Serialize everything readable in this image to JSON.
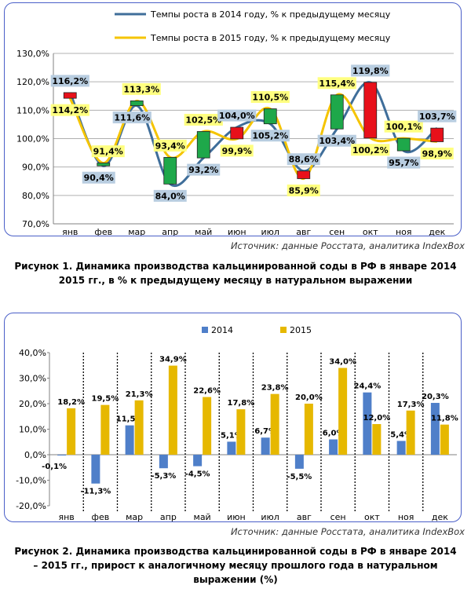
{
  "chart1": {
    "legend": [
      "Темпы роста в 2014 году, % к предыдущему месяцу",
      "Темпы роста в 2015 году, % к предыдущему месяцу"
    ],
    "source": "Источник: данные Росстата, аналитика IndexBox",
    "caption_line1": "Рисунок 1. Динамика производства кальцинированной  соды в РФ в январе 2014",
    "caption_line2": "2015 гг., в % к предыдущему  месяцу в натуральном  выражении"
  },
  "chart2": {
    "source": "Источник: данные Росстата, аналитика IndexBox",
    "caption_line1": "Рисунок 2. Динамика производства кальцинированной  соды в РФ в январе 2014",
    "caption_line2": "– 2015 гг., прирост  к аналогичному  месяцу прошлого года в натуральном",
    "caption_line3": "выражении (%)"
  },
  "chart_data": [
    {
      "type": "line",
      "categories": [
        "янв",
        "фев",
        "мар",
        "апр",
        "май",
        "июн",
        "июл",
        "авг",
        "сен",
        "окт",
        "ноя",
        "дек"
      ],
      "series": [
        {
          "name": "Темпы роста в 2014 году, % к предыдущему месяцу",
          "values": [
            116.2,
            90.4,
            111.6,
            84.0,
            93.2,
            104.0,
            105.2,
            88.6,
            103.4,
            119.8,
            95.7,
            103.7
          ],
          "labels": [
            "116,2%",
            "90,4%",
            "111,6%",
            "84,0%",
            "93,2%",
            "104,0%",
            "105,2%",
            "88,6%",
            "103,4%",
            "119,8%",
            "95,7%",
            "103,7%"
          ]
        },
        {
          "name": "Темпы роста в 2015 году, % к предыдущему месяцу",
          "values": [
            114.2,
            91.4,
            113.3,
            93.4,
            102.5,
            99.9,
            110.5,
            85.9,
            115.4,
            100.2,
            100.1,
            98.9
          ],
          "labels": [
            "114,2%",
            "91,4%",
            "113,3%",
            "93,4%",
            "102,5%",
            "99,9%",
            "110,5%",
            "85,9%",
            "115,4%",
            "100,2%",
            "100,1%",
            "98,9%"
          ]
        }
      ],
      "ylim": [
        70,
        130
      ],
      "yticks": [
        "70,0%",
        "80,0%",
        "90,0%",
        "100,0%",
        "110,0%",
        "120,0%",
        "130,0%"
      ],
      "grid": true,
      "colors": {
        "s2014": "#3f6e9a",
        "s2015": "#f5c400",
        "up": "#1ea84a",
        "down": "#e8101a",
        "label2014": "#b8cde0",
        "label2015": "#ffff80"
      }
    },
    {
      "type": "bar",
      "categories": [
        "янв",
        "фев",
        "мар",
        "апр",
        "май",
        "июн",
        "июл",
        "авг",
        "сен",
        "окт",
        "ноя",
        "дек"
      ],
      "series": [
        {
          "name": "2014",
          "values": [
            -0.1,
            -11.3,
            11.5,
            -5.3,
            -4.5,
            5.1,
            6.7,
            -5.5,
            6.0,
            24.4,
            5.4,
            20.3
          ],
          "labels": [
            "-0,1%",
            "-11,3%",
            "11,5%",
            "-5,3%",
            "-4,5%",
            "5,1%",
            "6,7%",
            "-5,5%",
            "6,0%",
            "24,4%",
            "5,4%",
            "20,3%"
          ]
        },
        {
          "name": "2015",
          "values": [
            18.2,
            19.5,
            21.3,
            34.9,
            22.6,
            17.8,
            23.8,
            20.0,
            34.0,
            12.0,
            17.3,
            11.8
          ],
          "labels": [
            "18,2%",
            "19,5%",
            "21,3%",
            "34,9%",
            "22,6%",
            "17,8%",
            "23,8%",
            "20,0%",
            "34,0%",
            "12,0%",
            "17,3%",
            "11,8%"
          ]
        }
      ],
      "ylim": [
        -20,
        40
      ],
      "yticks": [
        "-20,0%",
        "-10,0%",
        "0,0%",
        "10,0%",
        "20,0%",
        "30,0%",
        "40,0%"
      ],
      "legend_position": "top",
      "colors": {
        "s2014": "#4f7fc9",
        "s2015": "#e6b800"
      }
    }
  ]
}
